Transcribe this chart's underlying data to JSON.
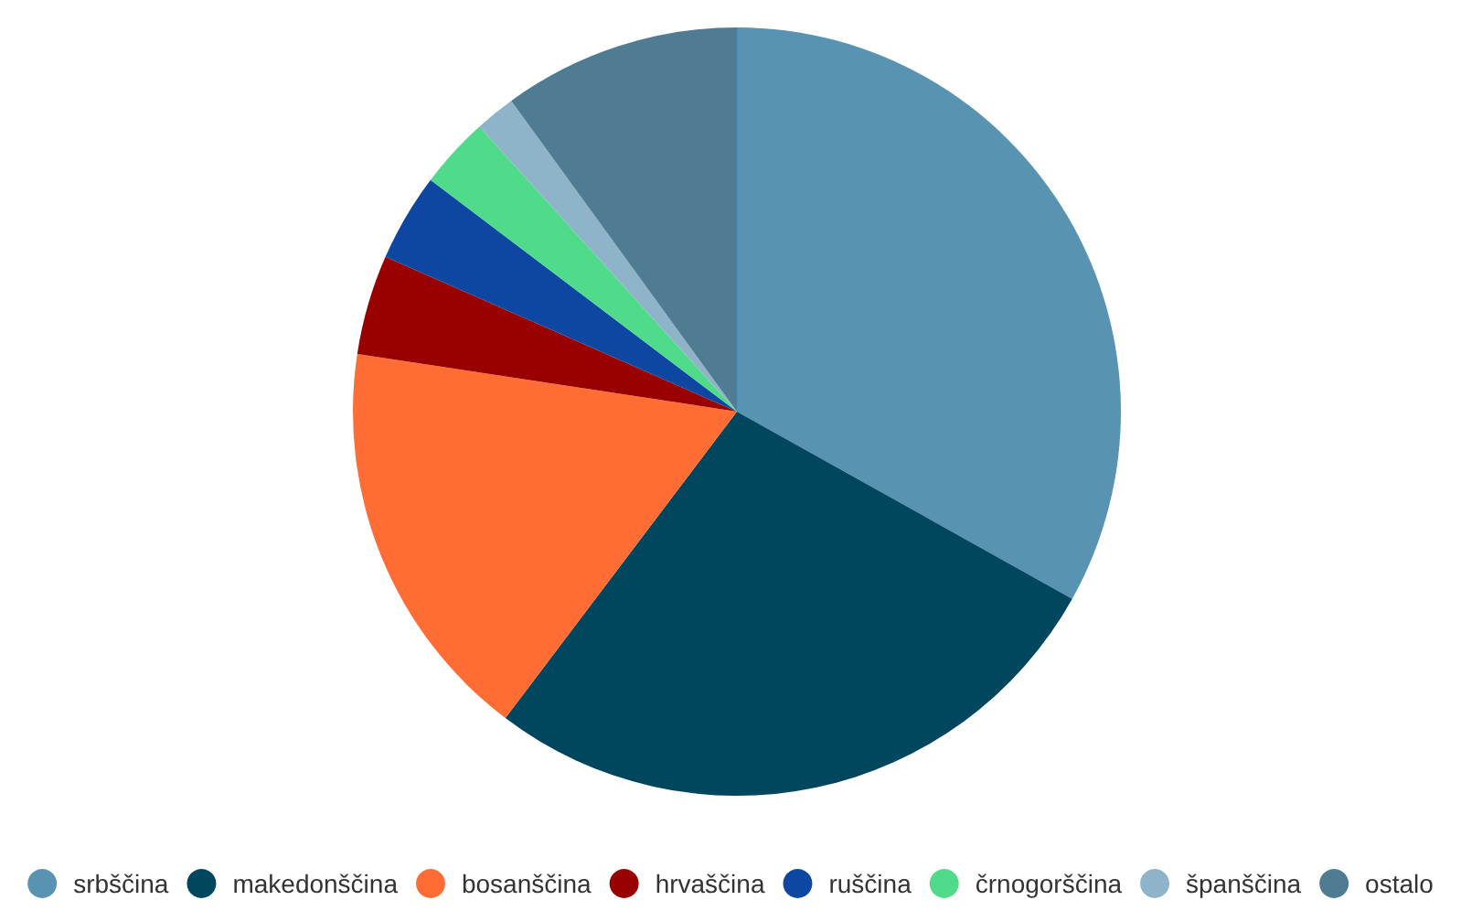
{
  "chart_data": {
    "type": "pie",
    "categories": [
      "srbščina",
      "makedonščina",
      "bosanščina",
      "hrvaščina",
      "ruščina",
      "črnogorščina",
      "španščina",
      "ostalo"
    ],
    "values": [
      33.1,
      27.2,
      17.1,
      4.2,
      3.7,
      3.0,
      1.7,
      10.0
    ],
    "colors": [
      "#5893b1",
      "#00465f",
      "#ff6d35",
      "#990000",
      "#0d47a1",
      "#4fdb8a",
      "#8fb4c9",
      "#4f7c92"
    ],
    "legend": "bottom"
  }
}
